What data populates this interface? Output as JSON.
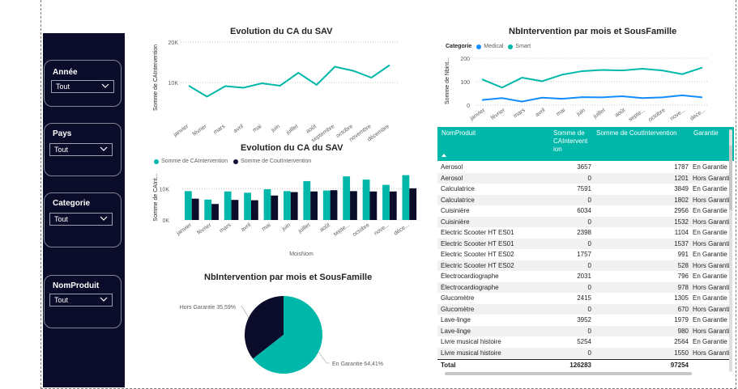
{
  "slicers": [
    {
      "label": "Année",
      "value": "Tout"
    },
    {
      "label": "Pays",
      "value": "Tout"
    },
    {
      "label": "Categorie",
      "value": "Tout"
    },
    {
      "label": "NomProduit",
      "value": "Tout"
    }
  ],
  "colors": {
    "teal": "#00b8a9",
    "navy": "#0b0c2a",
    "blue": "#118dff",
    "sidebar": "#0b0c2a"
  },
  "chart_data": [
    {
      "type": "line",
      "title": "Evolution du CA du SAV",
      "xlabel": "",
      "ylabel": "Somme de CAIntervention",
      "categories": [
        "janvier",
        "février",
        "mars",
        "avril",
        "mai",
        "juin",
        "juillet",
        "août",
        "septembre",
        "octobre",
        "novembre",
        "décembre"
      ],
      "series": [
        {
          "values": [
            9200,
            6500,
            9100,
            8700,
            9800,
            9200,
            12400,
            9400,
            13900,
            12900,
            11200,
            14300
          ]
        }
      ],
      "yticks": [
        "10K",
        "20K"
      ],
      "ylim": [
        5000,
        20000
      ],
      "grid": true
    },
    {
      "type": "bar",
      "title": "Evolution du CA du SAV",
      "xlabel": "MoisNom",
      "ylabel": "Somme de CAInt...",
      "categories": [
        "janvier",
        "février",
        "mars",
        "avril",
        "mai",
        "juin",
        "juillet",
        "août",
        "septe...",
        "octobre",
        "nove...",
        "déce..."
      ],
      "series": [
        {
          "name": "Somme de CAIntervention",
          "values": [
            9200,
            6500,
            9100,
            8700,
            9800,
            9200,
            12400,
            9400,
            13900,
            12900,
            11200,
            14300
          ]
        },
        {
          "name": "Somme de CoutIntervention",
          "values": [
            6800,
            5100,
            6400,
            6300,
            7800,
            8900,
            9100,
            9500,
            9200,
            9100,
            9100,
            10100
          ]
        }
      ],
      "yticks": [
        "0K",
        "10K"
      ],
      "ylim": [
        0,
        16000
      ],
      "grid": true
    },
    {
      "type": "pie",
      "title": "NbIntervention par mois et SousFamille",
      "slices": [
        {
          "label": "Hors Garantie 35,59%",
          "value": 35.59
        },
        {
          "label": "En Garantie 64,41%",
          "value": 64.41
        }
      ]
    },
    {
      "type": "line",
      "title": "NbIntervention par mois et SousFamille",
      "legend_title": "Categorie",
      "legend_position": "top-left",
      "ylabel": "Somme de Nbint...",
      "categories": [
        "janvier",
        "février",
        "mars",
        "avril",
        "mai",
        "juin",
        "juillet",
        "août",
        "septe...",
        "octobre",
        "nove...",
        "déce..."
      ],
      "series": [
        {
          "name": "Medical",
          "values": [
            22,
            30,
            15,
            32,
            27,
            34,
            33,
            38,
            30,
            33,
            42,
            33
          ]
        },
        {
          "name": "Smart",
          "values": [
            110,
            75,
            117,
            102,
            130,
            145,
            150,
            148,
            155,
            148,
            132,
            160
          ]
        }
      ],
      "yticks": [
        "0",
        "100",
        "200"
      ],
      "ylim": [
        0,
        200
      ],
      "grid": true
    },
    {
      "type": "table",
      "columns": [
        "NomProduit",
        "Somme de CAIntervention",
        "Somme de CoutIntervention",
        "Garantie"
      ],
      "columns_display": [
        "NomProduit",
        "Somme de CAIntervent ion",
        "Somme de CoutIntervention",
        "Garantie"
      ],
      "rows": [
        [
          "Aerosol",
          "3657",
          "1787",
          "En Garantie"
        ],
        [
          "Aerosol",
          "0",
          "1201",
          "Hors Garantie"
        ],
        [
          "Calculatrice",
          "7591",
          "3849",
          "En Garantie"
        ],
        [
          "Calculatrice",
          "0",
          "1802",
          "Hors Garantie"
        ],
        [
          "Cuisinière",
          "6034",
          "2956",
          "En Garantie"
        ],
        [
          "Cuisinière",
          "0",
          "1532",
          "Hors Garantie"
        ],
        [
          "Electric Scooter HT ES01",
          "2398",
          "1104",
          "En Garantie"
        ],
        [
          "Electric Scooter HT ES01",
          "0",
          "1537",
          "Hors Garantie"
        ],
        [
          "Electric Scooter HT ES02",
          "1757",
          "991",
          "En Garantie"
        ],
        [
          "Electric Scooter HT ES02",
          "0",
          "528",
          "Hors Garantie"
        ],
        [
          "Électrocardiographe",
          "2031",
          "796",
          "En Garantie"
        ],
        [
          "Électrocardiographe",
          "0",
          "978",
          "Hors Garantie"
        ],
        [
          "Glucomètre",
          "2415",
          "1305",
          "En Garantie"
        ],
        [
          "Glucomètre",
          "0",
          "670",
          "Hors Garantie"
        ],
        [
          "Lave-linge",
          "3952",
          "1979",
          "En Garantie"
        ],
        [
          "Lave-linge",
          "0",
          "980",
          "Hors Garantie"
        ],
        [
          "Livre musical histoire",
          "5254",
          "2564",
          "En Garantie"
        ],
        [
          "Livre musical histoire",
          "0",
          "1550",
          "Hors Garantie"
        ]
      ],
      "total": [
        "Total",
        "126283",
        "97254",
        ""
      ]
    }
  ]
}
